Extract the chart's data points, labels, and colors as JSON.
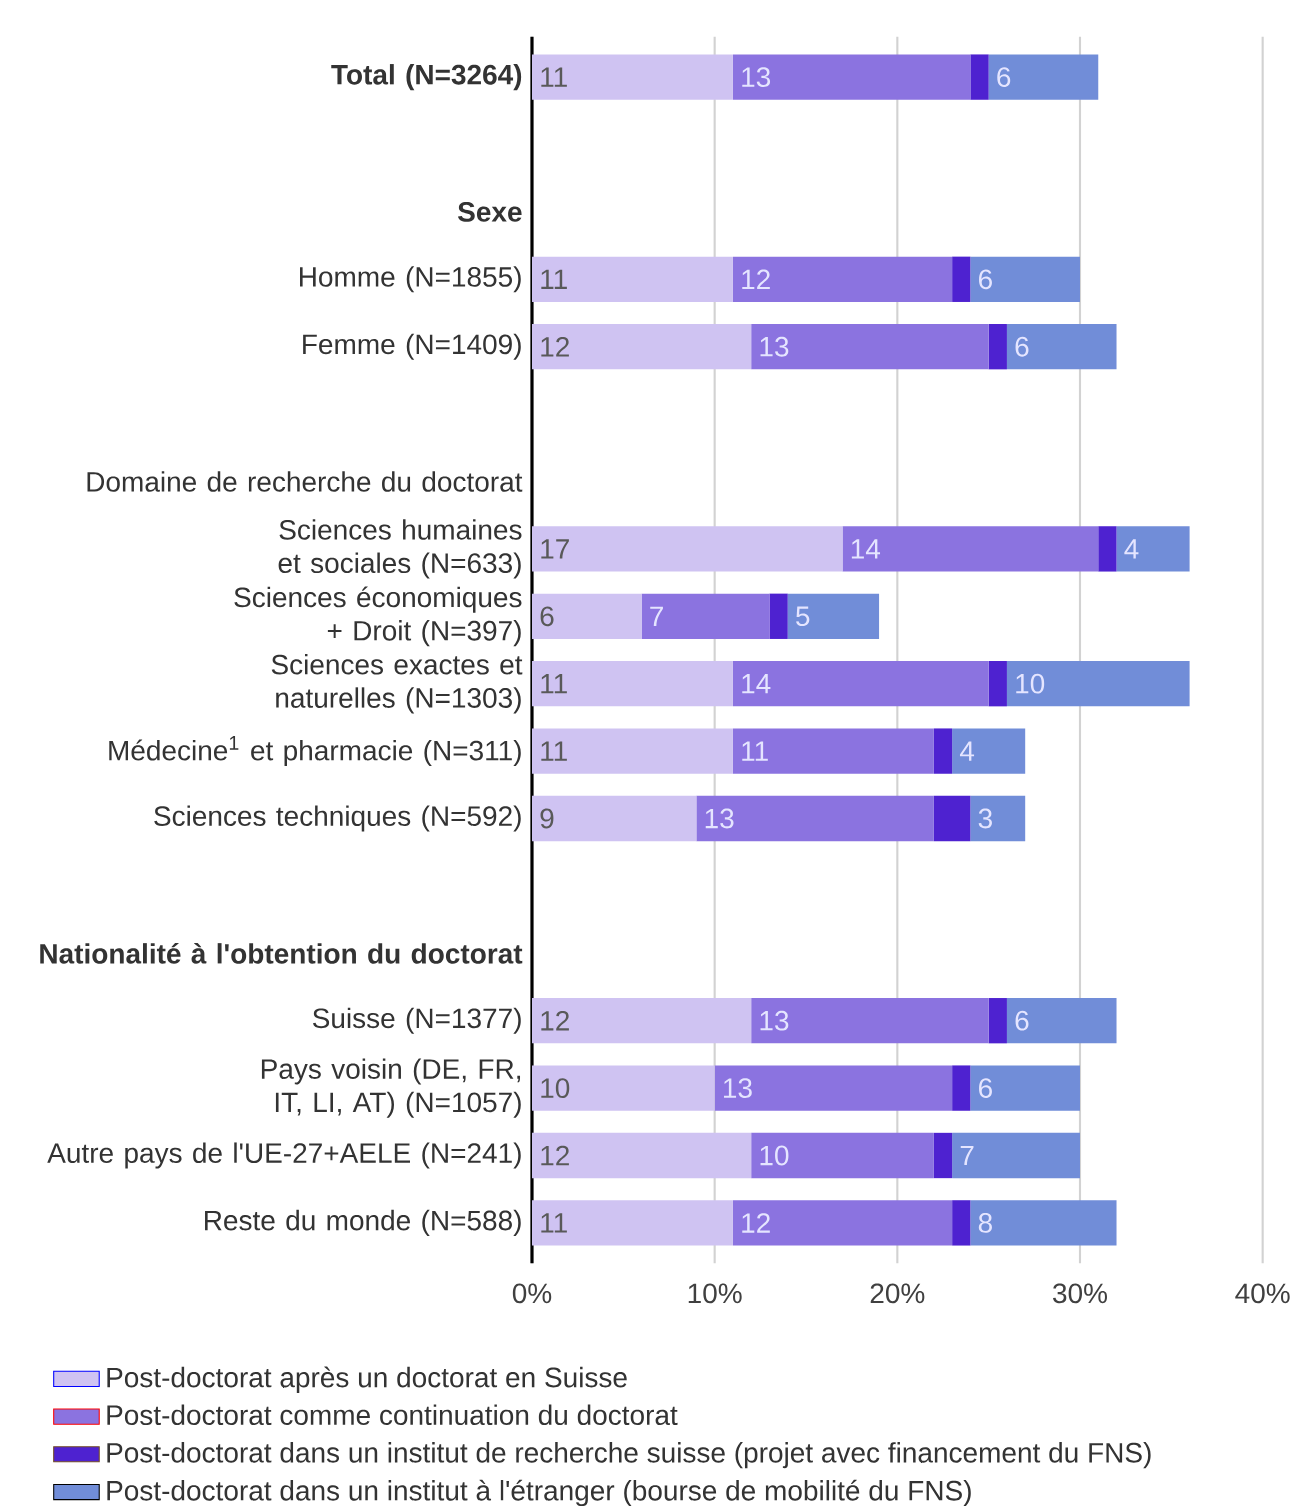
{
  "chart_data": {
    "type": "bar",
    "orientation": "horizontal",
    "stacked": true,
    "categories": [
      "Total (N=3264)",
      null,
      "Sexe",
      "Homme (N=1855)",
      "Femme (N=1409)",
      null,
      "Domaine de recherche du doctorat",
      "Sciences humaines et sociales (N=633)",
      "Sciences économiques + Droit (N=397)",
      "Sciences exactes et naturelles (N=1303)",
      "Médecine$^{1}$ et pharmacie (N=311)",
      "Sciences techniques (N=592)",
      null,
      "Nationalité à l'obtention du doctorat",
      "Suisse (N=1377)",
      "Pays voisin (DE, FR, IT, LI, AT) (N=1057)",
      "Autre pays de l'UE-27+AELE (N=241)",
      "Reste du monde (N=588)"
    ],
    "series": [
      {
        "name": "Post-doctorat après un doctorat en Suisse",
        "color": "#cfc3f2",
        "values": [
          11,
          null,
          null,
          11,
          12,
          null,
          null,
          17,
          6,
          11,
          11,
          9,
          null,
          null,
          12,
          10,
          12,
          11
        ],
        "value_labels": [
          "11",
          null,
          null,
          "11",
          "12",
          null,
          null,
          "17",
          "6",
          "11",
          "11",
          "9",
          null,
          null,
          "12",
          "10",
          "12",
          "11"
        ]
      },
      {
        "name": "Post-doctorat comme continuation du doctorat",
        "color": "#8b73e0",
        "values": [
          13,
          null,
          null,
          12,
          13,
          null,
          null,
          14,
          7,
          14,
          11,
          13,
          null,
          null,
          13,
          13,
          10,
          12
        ],
        "value_labels": [
          "13",
          null,
          null,
          "12",
          "13",
          null,
          null,
          "14",
          "7",
          "14",
          "11",
          "13",
          null,
          null,
          "13",
          "13",
          "10",
          "12"
        ]
      },
      {
        "name": "Post-doctorat dans un institut de recherche suisse (projet avec financement du FNS)",
        "color": "#4e22d0",
        "values": [
          1,
          null,
          null,
          1,
          1,
          null,
          null,
          1,
          1,
          1,
          1,
          2,
          null,
          null,
          1,
          1,
          1,
          1
        ]
      },
      {
        "name": "Post-doctorat dans un institut à l'étranger (bourse de mobilité du FNS)",
        "color": "#718dd8",
        "values": [
          6,
          null,
          null,
          6,
          6,
          null,
          null,
          4,
          5,
          10,
          4,
          3,
          null,
          null,
          6,
          6,
          7,
          8
        ],
        "value_labels": [
          "6",
          null,
          null,
          "6",
          "6",
          null,
          null,
          "4",
          "5",
          "10",
          "4",
          "3",
          null,
          null,
          "6",
          "6",
          "7",
          "8"
        ]
      }
    ],
    "xlim": [
      0,
      40
    ],
    "xticks": [
      {
        "value": 0,
        "label": "0%"
      },
      {
        "value": 10,
        "label": "10%"
      },
      {
        "value": 20,
        "label": "20%"
      },
      {
        "value": 30,
        "label": "30%"
      },
      {
        "value": 40,
        "label": "40%"
      }
    ],
    "grid": "x",
    "legend": "bottom"
  }
}
